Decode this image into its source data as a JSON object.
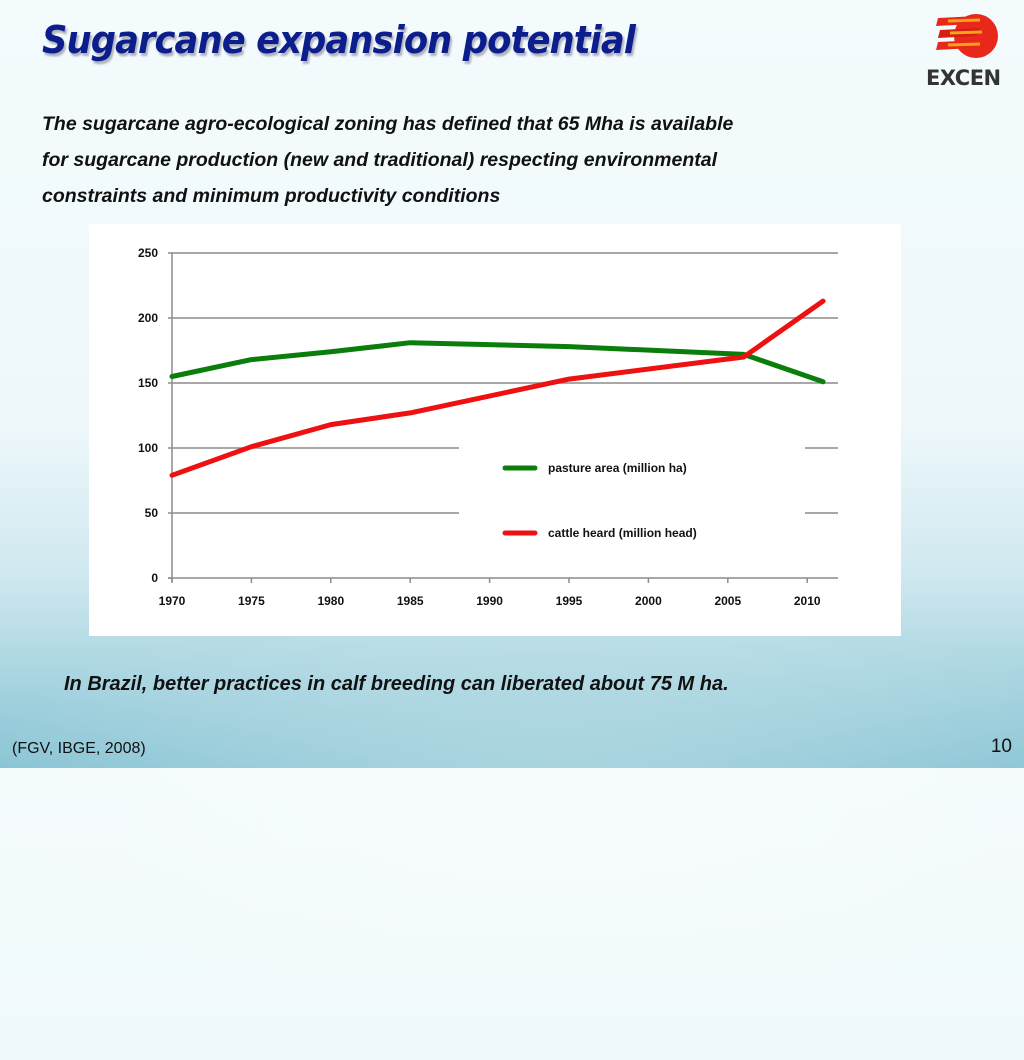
{
  "slide": {
    "title": "Sugarcane expansion potential",
    "logo_text": "EXCEN",
    "intro_lines": [
      "The sugarcane agro-ecological zoning has defined that 65 Mha is available",
      "for sugarcane production (new and traditional) respecting environmental",
      "constraints and minimum productivity conditions"
    ],
    "footer_note": "In Brazil, better practices in calf breeding can liberated about 75 M ha.",
    "source": "(FGV, IBGE, 2008)",
    "page_number": "10"
  },
  "chart_data": {
    "type": "line",
    "title": "",
    "xlabel": "",
    "ylabel": "",
    "xlim": [
      1970,
      2012
    ],
    "ylim": [
      0,
      250
    ],
    "grid": true,
    "legend_position": "center-right",
    "x_ticks": [
      1970,
      1975,
      1980,
      1985,
      1990,
      1995,
      2000,
      2005,
      2010
    ],
    "x_tick_labels": [
      "1970",
      "1975",
      "1980",
      "1985",
      "1990",
      "1995",
      "2000",
      "2005",
      "2010"
    ],
    "y_ticks": [
      0,
      50,
      100,
      150,
      200,
      250
    ],
    "y_tick_labels": [
      "0",
      "50",
      "100",
      "150",
      "200",
      "250"
    ],
    "series": [
      {
        "name": "pasture area (million ha)",
        "color": "#0a7d0a",
        "x": [
          1970,
          1975,
          1980,
          1985,
          1995,
          2006,
          2011
        ],
        "values": [
          155,
          168,
          174,
          181,
          178,
          172,
          151
        ]
      },
      {
        "name": "cattle heard (million head)",
        "color": "#ee1111",
        "x": [
          1970,
          1975,
          1980,
          1985,
          1995,
          2006,
          2011
        ],
        "values": [
          79,
          101,
          118,
          127,
          153,
          170,
          213
        ]
      }
    ]
  }
}
